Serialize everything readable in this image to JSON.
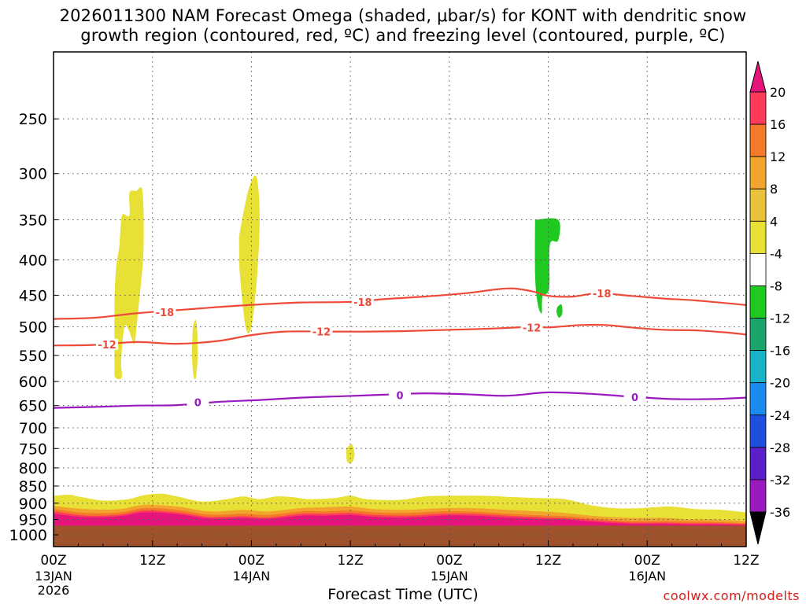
{
  "title_line1": "2026011300 NAM Forecast Omega (shaded, μbar/s) for KONT with dendritic snow",
  "title_line2": "growth region (contoured, red, ºC) and freezing level (contoured, purple, ºC)",
  "xlabel": "Forecast Time (UTC)",
  "credit": "coolwx.com/modelts",
  "chart_data": {
    "type": "heatmap",
    "title": "2026011300 NAM Forecast Omega (shaded, μbar/s) for KONT with dendritic snow growth region (contoured, red, ºC) and freezing level (contoured, purple, ºC)",
    "xlabel": "Forecast Time (UTC)",
    "ylabel": "",
    "x_unit": "forecast hour",
    "xlim": [
      0,
      84
    ],
    "y_unit": "hPa",
    "ylim": [
      1040,
      200
    ],
    "y_scale": "log-pressure",
    "grid": true,
    "x_ticks": [
      {
        "x": 0,
        "label": "00Z",
        "sub": [
          "13JAN",
          "2026"
        ]
      },
      {
        "x": 12,
        "label": "12Z",
        "sub": []
      },
      {
        "x": 24,
        "label": "00Z",
        "sub": [
          "14JAN"
        ]
      },
      {
        "x": 36,
        "label": "12Z",
        "sub": []
      },
      {
        "x": 48,
        "label": "00Z",
        "sub": [
          "15JAN"
        ]
      },
      {
        "x": 60,
        "label": "12Z",
        "sub": []
      },
      {
        "x": 72,
        "label": "00Z",
        "sub": [
          "16JAN"
        ]
      },
      {
        "x": 84,
        "label": "12Z",
        "sub": []
      }
    ],
    "x_minor_grid": [
      3,
      6,
      9,
      15,
      18,
      21,
      27,
      30,
      33,
      39,
      42,
      45,
      51,
      54,
      57,
      63,
      66,
      69,
      75,
      78,
      81
    ],
    "y_ticks": [
      250,
      300,
      350,
      400,
      450,
      500,
      550,
      600,
      650,
      700,
      750,
      800,
      850,
      900,
      950,
      1000
    ],
    "colorbar": {
      "labels": [
        20,
        16,
        12,
        8,
        4,
        -4,
        -8,
        -12,
        -16,
        -20,
        -24,
        -28,
        -32,
        -36
      ],
      "colors": [
        "#ff3b5c",
        "#f47a2a",
        "#f2a52c",
        "#e8c23a",
        "#e8e035",
        "#ffffff",
        "#1fc91f",
        "#1aa66a",
        "#19b3c8",
        "#1a8cf0",
        "#1e4fe0",
        "#5a1fc8",
        "#9a1ac0",
        "#b5b5b5",
        "#000000"
      ],
      "top_arrow_color": "#e6157d",
      "bottom_arrow_color": "#000000"
    },
    "terrain": {
      "top_hPa": 970,
      "color": "#a0522d"
    },
    "omega_regions": [
      {
        "value": 4,
        "color": "#e8e035",
        "points": [
          [
            7.4,
            590
          ],
          [
            7.4,
            460
          ],
          [
            7.6,
            410
          ],
          [
            8.0,
            380
          ],
          [
            8.3,
            345
          ],
          [
            9.2,
            345
          ],
          [
            9.2,
            320
          ],
          [
            10.0,
            318
          ],
          [
            10.8,
            319
          ],
          [
            10.9,
            390
          ],
          [
            10.3,
            470
          ],
          [
            10.0,
            510
          ],
          [
            9.8,
            530
          ],
          [
            9.5,
            520
          ],
          [
            9.1,
            505
          ],
          [
            8.6,
            500
          ],
          [
            8.2,
            560
          ],
          [
            8.3,
            590
          ],
          [
            7.8,
            595
          ]
        ]
      },
      {
        "value": 4,
        "color": "#e8e035",
        "points": [
          [
            16.9,
            500
          ],
          [
            17.3,
            490
          ],
          [
            17.5,
            540
          ],
          [
            17.3,
            590
          ],
          [
            17.0,
            590
          ],
          [
            16.8,
            550
          ]
        ]
      },
      {
        "value": 4,
        "color": "#e8e035",
        "points": [
          [
            22.5,
            370
          ],
          [
            23.6,
            318
          ],
          [
            24.6,
            303
          ],
          [
            25.0,
            345
          ],
          [
            24.7,
            420
          ],
          [
            24.0,
            500
          ],
          [
            23.3,
            500
          ],
          [
            22.6,
            420
          ]
        ]
      },
      {
        "value": 4,
        "color": "#e8e035",
        "points": [
          [
            35.5,
            750
          ],
          [
            36.2,
            740
          ],
          [
            36.5,
            765
          ],
          [
            36.2,
            785
          ],
          [
            35.6,
            783
          ]
        ]
      },
      {
        "value": -4,
        "color": "#1fc91f",
        "points": [
          [
            58.4,
            350
          ],
          [
            61.2,
            350
          ],
          [
            61.2,
            375
          ],
          [
            60.2,
            380
          ],
          [
            60.1,
            440
          ],
          [
            59.3,
            452
          ],
          [
            59.2,
            478
          ],
          [
            58.7,
            462
          ],
          [
            58.4,
            420
          ]
        ]
      },
      {
        "value": -4,
        "color": "#1fc91f",
        "points": [
          [
            61.1,
            468
          ],
          [
            61.6,
            464
          ],
          [
            61.7,
            478
          ],
          [
            61.3,
            485
          ],
          [
            61.0,
            476
          ]
        ]
      }
    ],
    "omega_lowlevel": [
      {
        "value": 4,
        "color": "#e8e035",
        "top": [
          [
            0,
            878
          ],
          [
            2,
            875
          ],
          [
            3,
            880
          ],
          [
            6,
            892
          ],
          [
            9,
            888
          ],
          [
            11,
            876
          ],
          [
            13,
            872
          ],
          [
            15,
            880
          ],
          [
            18,
            895
          ],
          [
            21,
            888
          ],
          [
            23,
            880
          ],
          [
            25,
            888
          ],
          [
            27,
            880
          ],
          [
            29,
            882
          ],
          [
            31,
            888
          ],
          [
            34,
            885
          ],
          [
            36,
            878
          ],
          [
            38,
            888
          ],
          [
            42,
            890
          ],
          [
            45,
            880
          ],
          [
            48,
            878
          ],
          [
            52,
            878
          ],
          [
            56,
            882
          ],
          [
            59,
            885
          ],
          [
            62,
            888
          ],
          [
            65,
            905
          ],
          [
            68,
            915
          ],
          [
            71,
            915
          ],
          [
            73,
            912
          ],
          [
            75,
            910
          ],
          [
            78,
            918
          ],
          [
            81,
            920
          ],
          [
            84,
            928
          ]
        ]
      },
      {
        "value": 8,
        "color": "#f2a52c",
        "top": [
          [
            0,
            908
          ],
          [
            4,
            918
          ],
          [
            8,
            918
          ],
          [
            11,
            905
          ],
          [
            15,
            910
          ],
          [
            19,
            925
          ],
          [
            23,
            920
          ],
          [
            26,
            925
          ],
          [
            30,
            915
          ],
          [
            33,
            912
          ],
          [
            36,
            910
          ],
          [
            39,
            918
          ],
          [
            43,
            920
          ],
          [
            47,
            915
          ],
          [
            51,
            915
          ],
          [
            55,
            920
          ],
          [
            59,
            925
          ],
          [
            62,
            930
          ],
          [
            66,
            940
          ],
          [
            70,
            945
          ],
          [
            74,
            945
          ],
          [
            77,
            950
          ],
          [
            80,
            950
          ],
          [
            84,
            955
          ]
        ]
      },
      {
        "value": 12,
        "color": "#f47a2a",
        "top": [
          [
            0,
            918
          ],
          [
            4,
            930
          ],
          [
            8,
            928
          ],
          [
            11,
            915
          ],
          [
            15,
            920
          ],
          [
            19,
            935
          ],
          [
            23,
            932
          ],
          [
            26,
            936
          ],
          [
            30,
            925
          ],
          [
            33,
            925
          ],
          [
            36,
            922
          ],
          [
            39,
            928
          ],
          [
            43,
            930
          ],
          [
            47,
            925
          ],
          [
            51,
            926
          ],
          [
            55,
            932
          ],
          [
            59,
            937
          ],
          [
            62,
            940
          ],
          [
            66,
            948
          ],
          [
            70,
            955
          ],
          [
            74,
            955
          ],
          [
            77,
            957
          ],
          [
            80,
            958
          ],
          [
            84,
            962
          ]
        ]
      },
      {
        "value": 16,
        "color": "#ff3b5c",
        "top": [
          [
            0,
            925
          ],
          [
            4,
            938
          ],
          [
            8,
            935
          ],
          [
            11,
            922
          ],
          [
            15,
            928
          ],
          [
            19,
            942
          ],
          [
            23,
            940
          ],
          [
            26,
            944
          ],
          [
            30,
            932
          ],
          [
            33,
            932
          ],
          [
            36,
            930
          ],
          [
            39,
            936
          ],
          [
            43,
            938
          ],
          [
            47,
            932
          ],
          [
            51,
            932
          ],
          [
            55,
            938
          ],
          [
            59,
            943
          ],
          [
            62,
            946
          ],
          [
            66,
            953
          ],
          [
            70,
            960
          ],
          [
            74,
            960
          ],
          [
            77,
            962
          ],
          [
            80,
            962
          ],
          [
            84,
            965
          ]
        ]
      },
      {
        "value": 20,
        "color": "#e6157d",
        "top": [
          [
            0,
            932
          ],
          [
            4,
            943
          ],
          [
            8,
            940
          ],
          [
            11,
            928
          ],
          [
            15,
            933
          ],
          [
            19,
            947
          ],
          [
            23,
            945
          ],
          [
            26,
            948
          ],
          [
            30,
            938
          ],
          [
            33,
            938
          ],
          [
            36,
            936
          ],
          [
            39,
            942
          ],
          [
            43,
            944
          ],
          [
            47,
            938
          ],
          [
            51,
            938
          ],
          [
            55,
            944
          ],
          [
            59,
            948
          ],
          [
            62,
            950
          ],
          [
            66,
            958
          ],
          [
            70,
            964
          ],
          [
            74,
            964
          ],
          [
            77,
            966
          ],
          [
            80,
            966
          ],
          [
            84,
            968
          ]
        ]
      }
    ],
    "contours": [
      {
        "name": "-18",
        "kind": "dendritic",
        "color": "#ee4a3a",
        "label": "-18",
        "label_at": [
          [
            13.5,
            476
          ],
          [
            37.5,
            460
          ],
          [
            66.5,
            447
          ]
        ],
        "points": [
          [
            0,
            487
          ],
          [
            5,
            485
          ],
          [
            10,
            478
          ],
          [
            15,
            473
          ],
          [
            20,
            468
          ],
          [
            25,
            464
          ],
          [
            30,
            461
          ],
          [
            36,
            460
          ],
          [
            40,
            456
          ],
          [
            45,
            452
          ],
          [
            50,
            447
          ],
          [
            55,
            440
          ],
          [
            58,
            444
          ],
          [
            60,
            451
          ],
          [
            63,
            452
          ],
          [
            66,
            447
          ],
          [
            70,
            451
          ],
          [
            74,
            455
          ],
          [
            78,
            458
          ],
          [
            84,
            465
          ]
        ]
      },
      {
        "name": "-12",
        "kind": "dendritic",
        "color": "#ee4a3a",
        "label": "-12",
        "label_at": [
          [
            6.5,
            530
          ],
          [
            32.5,
            508
          ],
          [
            58.0,
            501
          ]
        ],
        "points": [
          [
            0,
            532
          ],
          [
            5,
            531
          ],
          [
            10,
            526
          ],
          [
            15,
            529
          ],
          [
            20,
            524
          ],
          [
            24,
            514
          ],
          [
            28,
            508
          ],
          [
            33,
            508
          ],
          [
            38,
            508
          ],
          [
            43,
            507
          ],
          [
            48,
            505
          ],
          [
            53,
            503
          ],
          [
            58,
            500
          ],
          [
            60,
            501
          ],
          [
            62,
            499
          ],
          [
            64,
            497
          ],
          [
            67,
            497
          ],
          [
            70,
            501
          ],
          [
            74,
            505
          ],
          [
            78,
            506
          ],
          [
            82,
            510
          ],
          [
            84,
            513
          ]
        ]
      },
      {
        "name": "0",
        "kind": "freezing",
        "color": "#9a1ac0",
        "label": "0",
        "label_at": [
          [
            17.5,
            643
          ],
          [
            42.0,
            628
          ],
          [
            70.5,
            632
          ]
        ],
        "points": [
          [
            0,
            655
          ],
          [
            5,
            653
          ],
          [
            10,
            650
          ],
          [
            15,
            649
          ],
          [
            20,
            642
          ],
          [
            25,
            638
          ],
          [
            30,
            633
          ],
          [
            35,
            630
          ],
          [
            40,
            627
          ],
          [
            45,
            624
          ],
          [
            50,
            626
          ],
          [
            55,
            629
          ],
          [
            60,
            622
          ],
          [
            65,
            625
          ],
          [
            70,
            631
          ],
          [
            75,
            636
          ],
          [
            80,
            636
          ],
          [
            84,
            633
          ]
        ]
      }
    ]
  }
}
